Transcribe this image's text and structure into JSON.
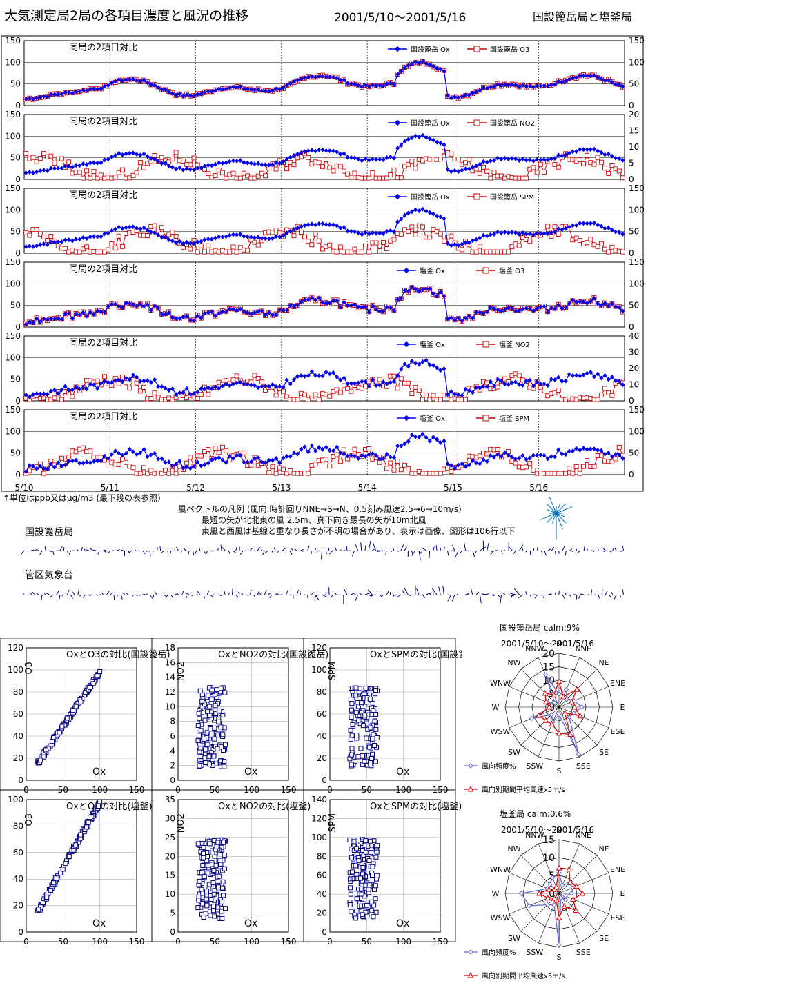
{
  "header": {
    "title": "大気測定局2局の各項目濃度と風況の推移",
    "period": "2001/5/10～2001/5/16",
    "stations": "国設篦岳局と塩釜局"
  },
  "timeseries": {
    "panel_title": "同局の2項目対比",
    "x_dates": [
      "5/10",
      "5/11",
      "5/12",
      "5/13",
      "5/14",
      "5/15",
      "5/16"
    ],
    "unit_note": "↑単位はppb又はμg/m3 (最下段の表参照)",
    "colors": {
      "primary": "#0000ee",
      "secondary": "#cc0000"
    }
  },
  "chart_data": [
    {
      "type": "line",
      "title": "同局の2項目対比",
      "ylim_left": [
        0,
        150
      ],
      "ylim_right": [
        0,
        150
      ],
      "left_ticks": [
        "0",
        "50",
        "100",
        "150"
      ],
      "right_ticks": [
        "0",
        "50",
        "100",
        "150"
      ],
      "series": [
        {
          "name": "国設篦岳 Ox",
          "axis": "left"
        },
        {
          "name": "国設篦岳 O3",
          "axis": "right"
        }
      ]
    },
    {
      "type": "line",
      "title": "同局の2項目対比",
      "ylim_left": [
        0,
        150
      ],
      "ylim_right": [
        0,
        20
      ],
      "left_ticks": [
        "0",
        "50",
        "100",
        "150"
      ],
      "right_ticks": [
        "0",
        "5",
        "10",
        "15",
        "20"
      ],
      "series": [
        {
          "name": "国設篦岳 Ox",
          "axis": "left"
        },
        {
          "name": "国設篦岳 NO2",
          "axis": "right"
        }
      ]
    },
    {
      "type": "line",
      "title": "同局の2項目対比",
      "ylim_left": [
        0,
        150
      ],
      "ylim_right": [
        0,
        150
      ],
      "left_ticks": [
        "0",
        "50",
        "100",
        "150"
      ],
      "right_ticks": [
        "0",
        "50",
        "100",
        "150"
      ],
      "series": [
        {
          "name": "国設篦岳 Ox",
          "axis": "left"
        },
        {
          "name": "国設篦岳 SPM",
          "axis": "right"
        }
      ]
    },
    {
      "type": "line",
      "title": "同局の2項目対比",
      "ylim_left": [
        0,
        150
      ],
      "ylim_right": [
        0,
        150
      ],
      "left_ticks": [
        "0",
        "50",
        "100",
        "150"
      ],
      "right_ticks": [
        "0",
        "50",
        "100",
        "150"
      ],
      "series": [
        {
          "name": "塩釜 Ox",
          "axis": "left"
        },
        {
          "name": "塩釜 O3",
          "axis": "right"
        }
      ]
    },
    {
      "type": "line",
      "title": "同局の2項目対比",
      "ylim_left": [
        0,
        150
      ],
      "ylim_right": [
        0,
        40
      ],
      "left_ticks": [
        "0",
        "50",
        "100",
        "150"
      ],
      "right_ticks": [
        "0",
        "10",
        "20",
        "30",
        "40"
      ],
      "series": [
        {
          "name": "塩釜 Ox",
          "axis": "left"
        },
        {
          "name": "塩釜 NO2",
          "axis": "right"
        }
      ]
    },
    {
      "type": "line",
      "title": "同局の2項目対比",
      "ylim_left": [
        0,
        150
      ],
      "ylim_right": [
        0,
        150
      ],
      "left_ticks": [
        "0",
        "50",
        "100",
        "150"
      ],
      "right_ticks": [
        "0",
        "50",
        "100",
        "150"
      ],
      "series": [
        {
          "name": "塩釜 Ox",
          "axis": "left"
        },
        {
          "name": "塩釜 SPM",
          "axis": "right"
        }
      ]
    }
  ],
  "wind": {
    "legend_line1": "風ベクトルの凡例 (風向:時計回りNNE→S→N、0.5刻み風速2.5→6→10m/s)",
    "legend_line2": "最短の矢が北北東の風 2.5m、真下向き最長の矢が10m北風",
    "legend_line3": "東風と西風は基線と重なり長さが不明の場合があり、表示は画像、図形は106行以下",
    "station1": "国設篦岳局",
    "station2": "管区気象台"
  },
  "scatter": {
    "x_label": "Ox",
    "x_ticks": [
      "0",
      "50",
      "100",
      "150"
    ],
    "plots": [
      {
        "title": "OxとO3の対比(国設篦岳)",
        "ylabel": "O3",
        "yticks": [
          "0",
          "20",
          "40",
          "60",
          "80",
          "100",
          "120"
        ]
      },
      {
        "title": "OxとNO2の対比(国設篦岳)",
        "ylabel": "NO2",
        "yticks": [
          "0",
          "2",
          "4",
          "6",
          "8",
          "10",
          "12",
          "14",
          "16",
          "18"
        ]
      },
      {
        "title": "OxとSPMの対比(国設篦岳)",
        "ylabel": "SPM",
        "yticks": [
          "0",
          "20",
          "40",
          "60",
          "80",
          "100",
          "120"
        ]
      },
      {
        "title": "OxとO3の対比(塩釜)",
        "ylabel": "O3",
        "yticks": [
          "0",
          "20",
          "40",
          "60",
          "80",
          "100"
        ]
      },
      {
        "title": "OxとNO2の対比(塩釜)",
        "ylabel": "NO2",
        "yticks": [
          "0",
          "5",
          "10",
          "15",
          "20",
          "25",
          "30",
          "35"
        ]
      },
      {
        "title": "OxとSPMの対比(塩釜)",
        "ylabel": "SPM",
        "yticks": [
          "0",
          "20",
          "40",
          "60",
          "80",
          "100",
          "120",
          "140"
        ]
      }
    ]
  },
  "rose": {
    "directions": [
      "N",
      "NNE",
      "NE",
      "ENE",
      "E",
      "ESE",
      "SE",
      "SSE",
      "S",
      "SSW",
      "SW",
      "WSW",
      "W",
      "WNW",
      "NW",
      "NNW"
    ],
    "legend_freq": "風向頻度%",
    "legend_speed": "風向別期間平均風速x5m/s",
    "plots": [
      {
        "title": "国設篦岳局  calm:9%",
        "period": "2001/5/10～2001/5/16",
        "rings": [
          "0",
          "5",
          "10",
          "15",
          "20"
        ]
      },
      {
        "title": "塩釜局  calm:0.6%",
        "period": "2001/5/10～2001/5/16",
        "rings": [
          "0",
          "5",
          "10",
          "15"
        ]
      }
    ]
  }
}
